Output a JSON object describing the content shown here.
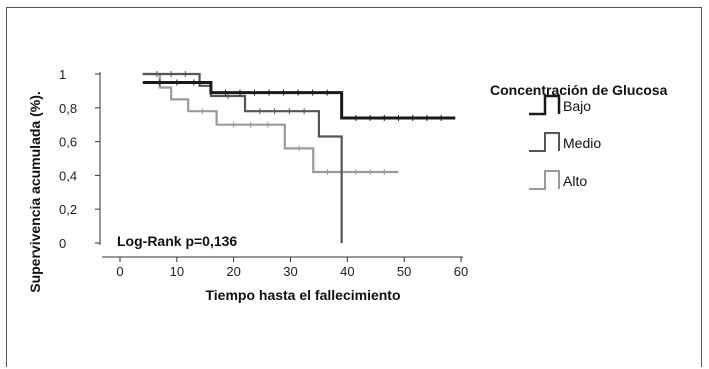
{
  "chart_data": {
    "type": "line",
    "subtype": "kaplan-meier",
    "xlabel": "Tiempo hasta el fallecimiento",
    "ylabel": "Supervivencia acumulada (%).",
    "xlim": [
      0,
      60
    ],
    "ylim": [
      0,
      1
    ],
    "x_ticks": [
      "0",
      "10",
      "20",
      "30",
      "40",
      "50",
      "60"
    ],
    "y_ticks": [
      "0",
      "0,2",
      "0,4",
      "0,6",
      "0,8",
      "1"
    ],
    "annotation": "Log-Rank  p=0,136",
    "legend": {
      "title": "Concentración de Glucosa",
      "position": "right"
    },
    "series": [
      {
        "name": "Bajo",
        "color": "#1a1a1a",
        "step": true,
        "x": [
          4,
          16,
          39,
          59
        ],
        "y": [
          0.95,
          0.89,
          0.74,
          0.74
        ]
      },
      {
        "name": "Medio",
        "color": "#555555",
        "step": true,
        "x": [
          4,
          14,
          16,
          22,
          35,
          39,
          39
        ],
        "y": [
          1.0,
          0.93,
          0.87,
          0.78,
          0.63,
          0.63,
          0.0
        ]
      },
      {
        "name": "Alto",
        "color": "#9a9a9a",
        "step": true,
        "x": [
          4,
          7,
          9,
          12,
          17,
          29,
          34,
          49
        ],
        "y": [
          1.0,
          0.92,
          0.85,
          0.78,
          0.7,
          0.56,
          0.42,
          0.42
        ]
      }
    ]
  }
}
